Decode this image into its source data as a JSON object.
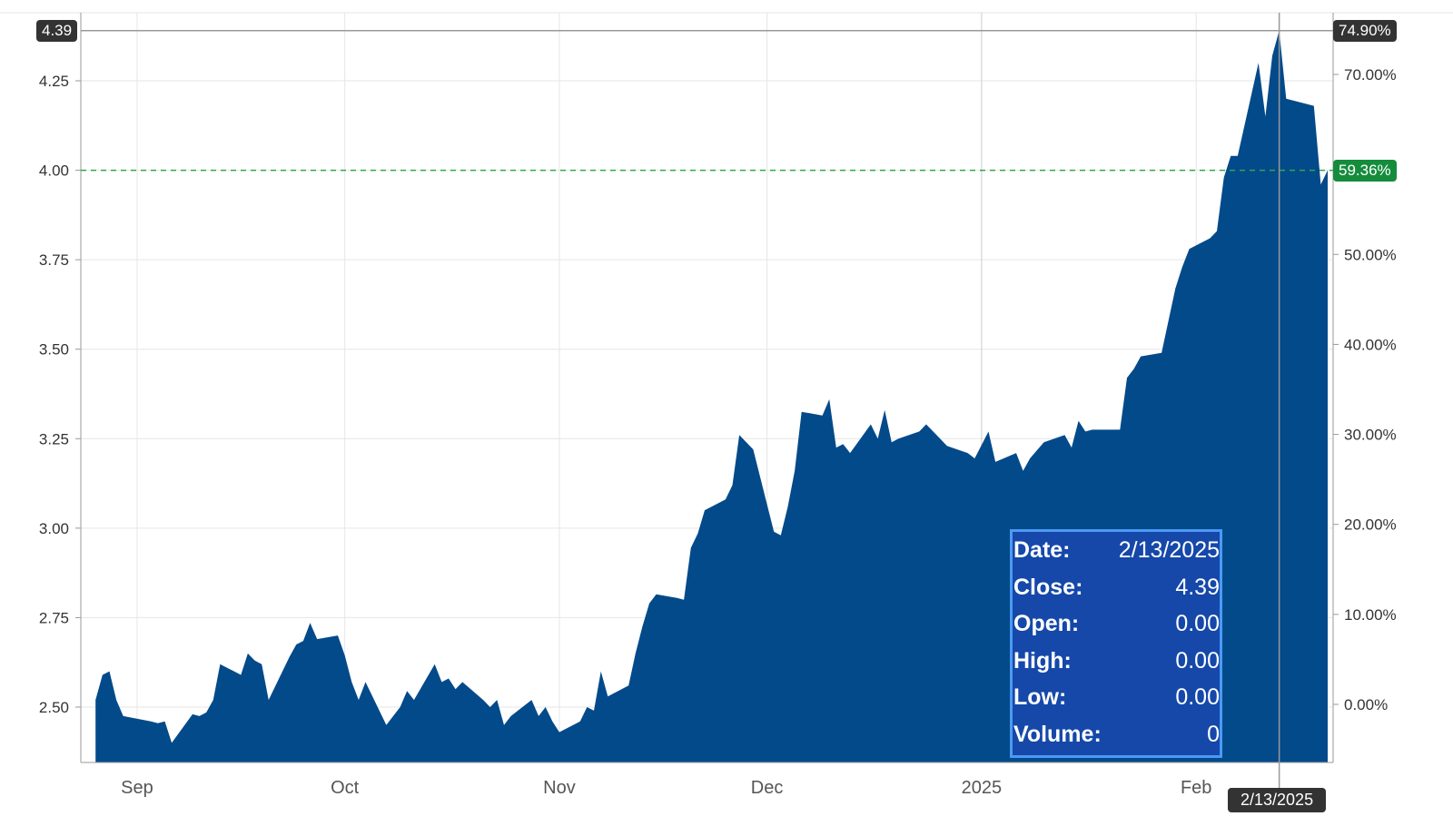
{
  "chart_data": {
    "type": "area",
    "title": "",
    "xlabel": "",
    "ylabel": "",
    "colors": {
      "area": "#034a8a",
      "reference_line": "#2fa84f",
      "crosshair": "#999999",
      "grid": "#e6e6e6"
    },
    "grid": true,
    "ylim": [
      2.345,
      4.39
    ],
    "xlim": [
      "2024-08-24",
      "2025-02-20"
    ],
    "y_ticks": [
      2.5,
      2.75,
      3.0,
      3.25,
      3.5,
      3.75,
      4.0,
      4.25
    ],
    "y_tick_labels": [
      "2.50",
      "2.75",
      "3.00",
      "3.25",
      "3.50",
      "3.75",
      "4.00",
      "4.25"
    ],
    "y2_ticks": [
      0,
      10,
      20,
      30,
      40,
      50,
      60,
      70
    ],
    "y2_tick_labels": [
      "0.00%",
      "10.00%",
      "20.00%",
      "30.00%",
      "40.00%",
      "50.00%",
      "",
      "70.00%"
    ],
    "x_ticks": [
      "2024-09-01",
      "2024-10-01",
      "2024-11-01",
      "2024-12-01",
      "2025-01-01",
      "2025-02-01"
    ],
    "x_tick_labels": [
      "Sep",
      "Oct",
      "Nov",
      "Dec",
      "2025",
      "Feb"
    ],
    "reference_line": {
      "value": 4.0,
      "label": "59.36%"
    },
    "crosshair": {
      "date": "2025-02-13",
      "value": 4.39,
      "y_label": "4.39",
      "y2_label": "74.90%",
      "x_label": "2/13/2025"
    },
    "dates": [
      "2024-08-26",
      "2024-08-27",
      "2024-08-28",
      "2024-08-29",
      "2024-08-30",
      "2024-09-03",
      "2024-09-04",
      "2024-09-05",
      "2024-09-06",
      "2024-09-09",
      "2024-09-10",
      "2024-09-11",
      "2024-09-12",
      "2024-09-13",
      "2024-09-16",
      "2024-09-17",
      "2024-09-18",
      "2024-09-19",
      "2024-09-20",
      "2024-09-23",
      "2024-09-24",
      "2024-09-25",
      "2024-09-26",
      "2024-09-27",
      "2024-09-30",
      "2024-10-01",
      "2024-10-02",
      "2024-10-03",
      "2024-10-04",
      "2024-10-07",
      "2024-10-08",
      "2024-10-09",
      "2024-10-10",
      "2024-10-11",
      "2024-10-14",
      "2024-10-15",
      "2024-10-16",
      "2024-10-17",
      "2024-10-18",
      "2024-10-21",
      "2024-10-22",
      "2024-10-23",
      "2024-10-24",
      "2024-10-25",
      "2024-10-28",
      "2024-10-29",
      "2024-10-30",
      "2024-10-31",
      "2024-11-01",
      "2024-11-04",
      "2024-11-05",
      "2024-11-06",
      "2024-11-07",
      "2024-11-08",
      "2024-11-11",
      "2024-11-12",
      "2024-11-13",
      "2024-11-14",
      "2024-11-15",
      "2024-11-18",
      "2024-11-19",
      "2024-11-20",
      "2024-11-21",
      "2024-11-22",
      "2024-11-25",
      "2024-11-26",
      "2024-11-27",
      "2024-11-29",
      "2024-12-02",
      "2024-12-03",
      "2024-12-04",
      "2024-12-05",
      "2024-12-06",
      "2024-12-09",
      "2024-12-10",
      "2024-12-11",
      "2024-12-12",
      "2024-12-13",
      "2024-12-16",
      "2024-12-17",
      "2024-12-18",
      "2024-12-19",
      "2024-12-20",
      "2024-12-23",
      "2024-12-24",
      "2024-12-26",
      "2024-12-27",
      "2024-12-30",
      "2024-12-31",
      "2025-01-02",
      "2025-01-03",
      "2025-01-06",
      "2025-01-07",
      "2025-01-08",
      "2025-01-10",
      "2025-01-13",
      "2025-01-14",
      "2025-01-15",
      "2025-01-16",
      "2025-01-17",
      "2025-01-21",
      "2025-01-22",
      "2025-01-23",
      "2025-01-24",
      "2025-01-27",
      "2025-01-28",
      "2025-01-29",
      "2025-01-30",
      "2025-01-31",
      "2025-02-03",
      "2025-02-04",
      "2025-02-05",
      "2025-02-06",
      "2025-02-07",
      "2025-02-10",
      "2025-02-11",
      "2025-02-12",
      "2025-02-13",
      "2025-02-14",
      "2025-02-18",
      "2025-02-19",
      "2025-02-20"
    ],
    "values": [
      2.52,
      2.59,
      2.6,
      2.52,
      2.475,
      2.46,
      2.455,
      2.46,
      2.4,
      2.48,
      2.475,
      2.485,
      2.52,
      2.62,
      2.59,
      2.65,
      2.63,
      2.62,
      2.52,
      2.64,
      2.675,
      2.685,
      2.735,
      2.69,
      2.7,
      2.645,
      2.57,
      2.52,
      2.57,
      2.45,
      2.475,
      2.5,
      2.545,
      2.52,
      2.62,
      2.57,
      2.58,
      2.55,
      2.57,
      2.52,
      2.5,
      2.52,
      2.45,
      2.475,
      2.52,
      2.475,
      2.5,
      2.46,
      2.43,
      2.46,
      2.5,
      2.49,
      2.6,
      2.53,
      2.56,
      2.65,
      2.725,
      2.79,
      2.815,
      2.805,
      2.8,
      2.945,
      2.985,
      3.05,
      3.08,
      3.12,
      3.26,
      3.22,
      2.99,
      2.98,
      3.06,
      3.16,
      3.325,
      3.315,
      3.36,
      3.225,
      3.235,
      3.21,
      3.29,
      3.25,
      3.33,
      3.24,
      3.25,
      3.27,
      3.29,
      3.25,
      3.23,
      3.21,
      3.195,
      3.27,
      3.185,
      3.21,
      3.16,
      3.195,
      3.24,
      3.26,
      3.225,
      3.3,
      3.27,
      3.275,
      3.275,
      3.42,
      3.445,
      3.48,
      3.49,
      3.58,
      3.67,
      3.73,
      3.78,
      3.81,
      3.83,
      3.98,
      4.04,
      4.04,
      4.3,
      4.15,
      4.32,
      4.39,
      4.2,
      4.18,
      3.96,
      4.0
    ]
  },
  "tooltip": {
    "rows": [
      {
        "label": "Date:",
        "value": "2/13/2025"
      },
      {
        "label": "Close:",
        "value": "4.39"
      },
      {
        "label": "Open:",
        "value": "0.00"
      },
      {
        "label": "High:",
        "value": "0.00"
      },
      {
        "label": "Low:",
        "value": "0.00"
      },
      {
        "label": "Volume:",
        "value": "0"
      }
    ]
  }
}
